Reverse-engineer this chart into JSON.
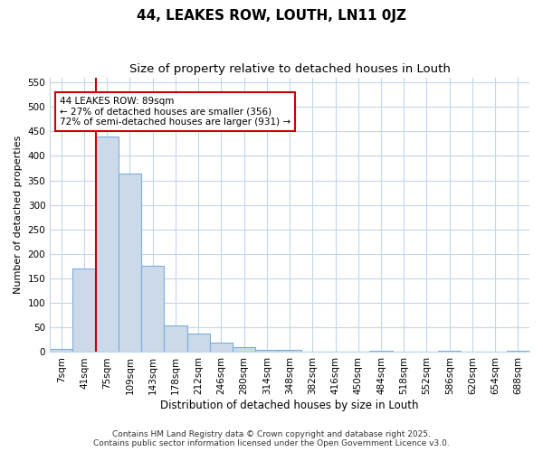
{
  "title1": "44, LEAKES ROW, LOUTH, LN11 0JZ",
  "title2": "Size of property relative to detached houses in Louth",
  "xlabel": "Distribution of detached houses by size in Louth",
  "ylabel": "Number of detached properties",
  "categories": [
    "7sqm",
    "41sqm",
    "75sqm",
    "109sqm",
    "143sqm",
    "178sqm",
    "212sqm",
    "246sqm",
    "280sqm",
    "314sqm",
    "348sqm",
    "382sqm",
    "416sqm",
    "450sqm",
    "484sqm",
    "518sqm",
    "552sqm",
    "586sqm",
    "620sqm",
    "654sqm",
    "688sqm"
  ],
  "values": [
    7,
    170,
    440,
    363,
    175,
    55,
    38,
    20,
    10,
    5,
    5,
    0,
    0,
    0,
    3,
    0,
    0,
    3,
    0,
    0,
    3
  ],
  "bar_color": "#ccd9e8",
  "bar_edge_color": "#7aafe0",
  "bar_edge_width": 0.8,
  "red_line_index": 2,
  "red_line_color": "#cc0000",
  "annotation_text": "44 LEAKES ROW: 89sqm\n← 27% of detached houses are smaller (356)\n72% of semi-detached houses are larger (931) →",
  "annotation_box_color": "#ffffff",
  "annotation_border_color": "#cc0000",
  "annotation_fontsize": 7.5,
  "ylim": [
    0,
    560
  ],
  "yticks": [
    0,
    50,
    100,
    150,
    200,
    250,
    300,
    350,
    400,
    450,
    500,
    550
  ],
  "grid_color": "#c5d5e8",
  "background_color": "#ffffff",
  "plot_bg_color": "#ffffff",
  "footer1": "Contains HM Land Registry data © Crown copyright and database right 2025.",
  "footer2": "Contains public sector information licensed under the Open Government Licence v3.0.",
  "title1_fontsize": 11,
  "title2_fontsize": 9.5,
  "xlabel_fontsize": 8.5,
  "ylabel_fontsize": 8,
  "tick_fontsize": 7.5
}
